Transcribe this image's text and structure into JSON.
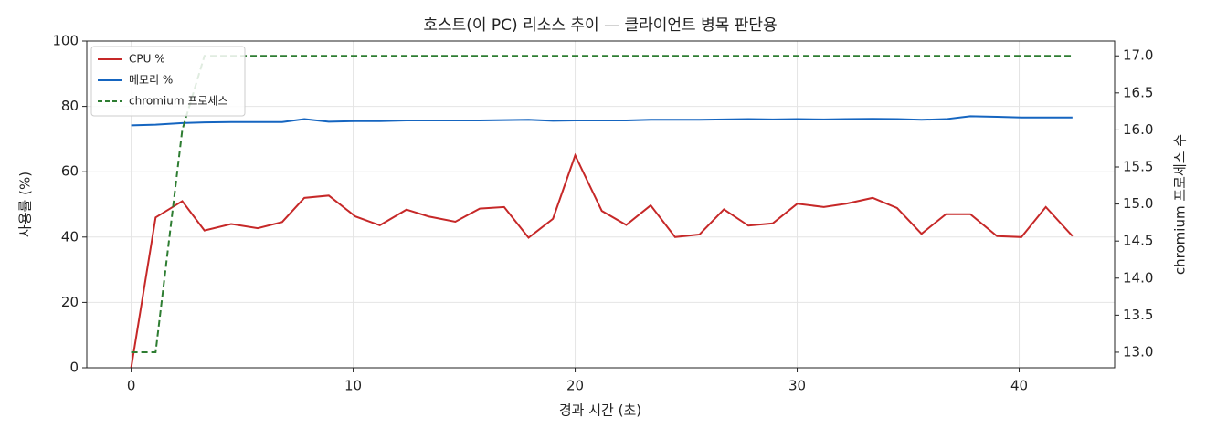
{
  "chart_data": {
    "type": "line",
    "title": "호스트(이 PC) 리소스 추이 — 클라이언트 병목 판단용",
    "xlabel": "경과 시간 (초)",
    "ylabel": "사용률 (%)",
    "y2label": "chromium 프로세스 수",
    "x": [
      0,
      1.1,
      2.3,
      3.3,
      4.5,
      5.7,
      6.8,
      7.8,
      8.9,
      10.1,
      11.2,
      12.4,
      13.4,
      14.6,
      15.7,
      16.8,
      17.9,
      19.0,
      20.0,
      21.2,
      22.3,
      23.4,
      24.5,
      25.6,
      26.7,
      27.8,
      28.9,
      30.0,
      31.2,
      32.2,
      33.4,
      34.5,
      35.6,
      36.7,
      37.8,
      39.0,
      40.1,
      41.2,
      42.4
    ],
    "series": [
      {
        "name": "CPU %",
        "color": "#c62828",
        "dash": false,
        "values": [
          0,
          46,
          51,
          42,
          44,
          42.7,
          44.6,
          52,
          52.7,
          46.3,
          43.6,
          48.4,
          46.3,
          44.7,
          48.7,
          49.2,
          39.8,
          45.6,
          65,
          48,
          43.7,
          49.7,
          40,
          40.8,
          48.5,
          43.5,
          44.2,
          50.2,
          49.2,
          50.2,
          52,
          48.9,
          41,
          47,
          47,
          40.3,
          40,
          49.2,
          40.3
        ]
      },
      {
        "name": "메모리 %",
        "color": "#1565c0",
        "dash": false,
        "values": [
          74.2,
          74.4,
          74.9,
          75.1,
          75.2,
          75.2,
          75.2,
          76.1,
          75.3,
          75.5,
          75.5,
          75.7,
          75.7,
          75.7,
          75.7,
          75.8,
          75.9,
          75.6,
          75.7,
          75.7,
          75.7,
          75.9,
          75.9,
          75.9,
          76.0,
          76.1,
          76.0,
          76.1,
          76.0,
          76.1,
          76.2,
          76.1,
          75.9,
          76.1,
          77.0,
          76.8,
          76.6,
          76.6,
          76.6
        ]
      },
      {
        "name": "chromium 프로세스",
        "color": "#2e7d32",
        "dash": true,
        "axis": "y2",
        "values": [
          13,
          13,
          16,
          17,
          17,
          17,
          17,
          17,
          17,
          17,
          17,
          17,
          17,
          17,
          17,
          17,
          17,
          17,
          17,
          17,
          17,
          17,
          17,
          17,
          17,
          17,
          17,
          17,
          17,
          17,
          17,
          17,
          17,
          17,
          17,
          17,
          17,
          17,
          17
        ]
      }
    ],
    "xlim": [
      -2.0,
      44.3
    ],
    "xticks": [
      0,
      10,
      20,
      30,
      40
    ],
    "ylim": [
      0,
      100
    ],
    "yticks": [
      0,
      20,
      40,
      60,
      80,
      100
    ],
    "y2lim": [
      12.79,
      17.2
    ],
    "y2ticks": [
      {
        "value": 13,
        "label": "13.0"
      },
      13.5,
      {
        "value": 14,
        "label": "14.0"
      },
      14.5,
      {
        "value": 15,
        "label": "15.0"
      },
      15.5,
      {
        "value": 16,
        "label": "16.0"
      },
      16.5,
      {
        "value": 17,
        "label": "17.0"
      }
    ],
    "grid": true,
    "legend": "upper left"
  }
}
